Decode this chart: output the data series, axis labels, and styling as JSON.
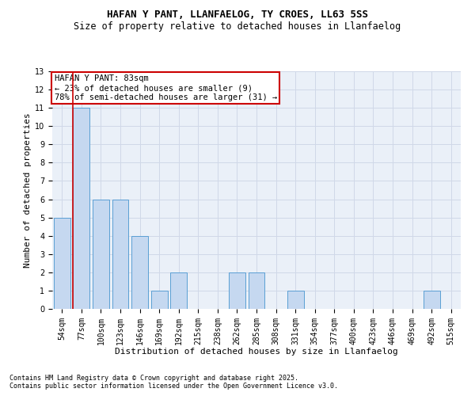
{
  "title1": "HAFAN Y PANT, LLANFAELOG, TY CROES, LL63 5SS",
  "title2": "Size of property relative to detached houses in Llanfaelog",
  "xlabel": "Distribution of detached houses by size in Llanfaelog",
  "ylabel": "Number of detached properties",
  "categories": [
    "54sqm",
    "77sqm",
    "100sqm",
    "123sqm",
    "146sqm",
    "169sqm",
    "192sqm",
    "215sqm",
    "238sqm",
    "262sqm",
    "285sqm",
    "308sqm",
    "331sqm",
    "354sqm",
    "377sqm",
    "400sqm",
    "423sqm",
    "446sqm",
    "469sqm",
    "492sqm",
    "515sqm"
  ],
  "values": [
    5,
    11,
    6,
    6,
    4,
    1,
    2,
    0,
    0,
    2,
    2,
    0,
    1,
    0,
    0,
    0,
    0,
    0,
    0,
    1,
    0
  ],
  "bar_color": "#c5d8f0",
  "bar_edge_color": "#5a9fd4",
  "grid_color": "#d0d8e8",
  "background_color": "#eaf0f8",
  "annotation_text": "HAFAN Y PANT: 83sqm\n← 23% of detached houses are smaller (9)\n78% of semi-detached houses are larger (31) →",
  "annotation_box_color": "#ffffff",
  "annotation_box_edge": "#cc0000",
  "vline_color": "#cc0000",
  "ylim": [
    0,
    13
  ],
  "yticks": [
    0,
    1,
    2,
    3,
    4,
    5,
    6,
    7,
    8,
    9,
    10,
    11,
    12,
    13
  ],
  "footnote1": "Contains HM Land Registry data © Crown copyright and database right 2025.",
  "footnote2": "Contains public sector information licensed under the Open Government Licence v3.0.",
  "title1_fontsize": 9,
  "title2_fontsize": 8.5,
  "xlabel_fontsize": 8,
  "ylabel_fontsize": 8,
  "tick_fontsize": 7,
  "annotation_fontsize": 7.5,
  "footnote_fontsize": 6
}
